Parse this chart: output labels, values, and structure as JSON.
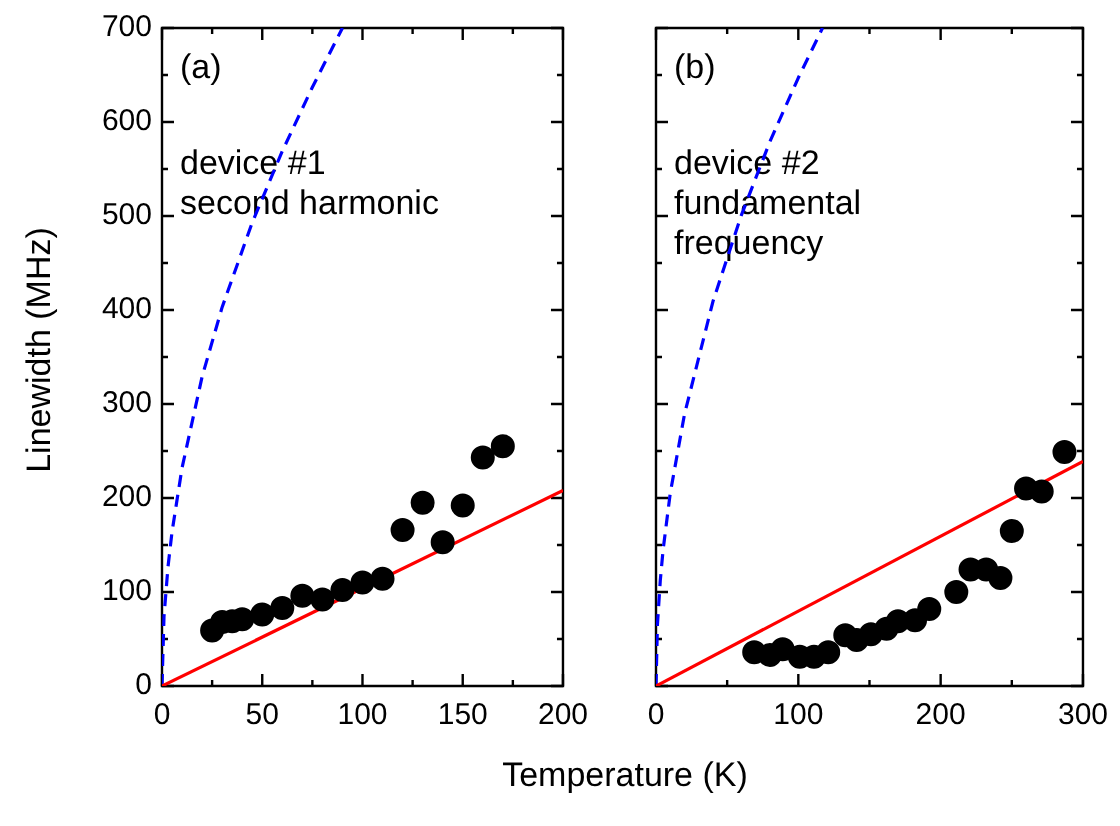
{
  "chart_data": [
    {
      "type": "scatter",
      "ylabel": "Linewidth (MHz)",
      "xlabel": "Temperature (K)",
      "annotations": [
        "(a)",
        "device #1",
        "second harmonic"
      ],
      "xlim": [
        0,
        200
      ],
      "xticks": [
        0,
        50,
        100,
        150,
        200
      ],
      "ylim": [
        0,
        700
      ],
      "yticks": [
        0,
        100,
        200,
        300,
        400,
        500,
        600,
        700
      ],
      "grid": false,
      "series": [
        {
          "marker": "circle",
          "color": "#000000",
          "x": [
            25,
            30,
            35,
            40,
            50,
            60,
            70,
            80,
            90,
            100,
            110,
            120,
            130,
            140,
            150,
            160,
            170
          ],
          "values": [
            59,
            68,
            69,
            71,
            76,
            83,
            96,
            92,
            102,
            110,
            114,
            166,
            195,
            153,
            192,
            243,
            255
          ]
        },
        {
          "type": "line",
          "line_style": "solid",
          "marker": "none",
          "color": "#ff0000",
          "x": [
            0,
            200
          ],
          "values": [
            0,
            208
          ]
        },
        {
          "type": "line",
          "line_style": "dashed",
          "marker": "none",
          "color": "#0000ff",
          "x": [
            0,
            1,
            3,
            5,
            10,
            20,
            30,
            45,
            60,
            75,
            90
          ],
          "values": [
            0,
            74,
            127,
            164,
            232,
            329,
            403,
            493,
            569,
            637,
            700
          ]
        }
      ]
    },
    {
      "type": "scatter",
      "annotations": [
        "(b)",
        "device #2",
        "fundamental",
        "frequency"
      ],
      "xlim": [
        0,
        300
      ],
      "xticks": [
        0,
        100,
        200,
        300
      ],
      "ylim": [
        0,
        700
      ],
      "yticks": [
        0,
        100,
        200,
        300,
        400,
        500,
        600,
        700
      ],
      "tick_labels": "x",
      "grid": false,
      "series": [
        {
          "marker": "circle",
          "color": "#000000",
          "x": [
            69,
            80,
            89,
            101,
            111,
            121,
            133,
            141,
            151,
            162,
            170,
            182,
            192,
            211,
            221,
            232,
            242,
            250,
            260,
            271,
            287
          ],
          "values": [
            36,
            33,
            39,
            31,
            31,
            36,
            54,
            49,
            55,
            61,
            69,
            70,
            82,
            100,
            124,
            124,
            115,
            165,
            210,
            207,
            249
          ]
        },
        {
          "type": "line",
          "line_style": "solid",
          "marker": "none",
          "color": "#ff0000",
          "x": [
            0,
            300
          ],
          "values": [
            0,
            239
          ]
        },
        {
          "type": "line",
          "line_style": "dashed",
          "marker": "none",
          "color": "#0000ff",
          "x": [
            0,
            1,
            3,
            5,
            10,
            20,
            40,
            60,
            80,
            100,
            117
          ],
          "values": [
            0,
            65,
            112,
            145,
            205,
            289,
            409,
            501,
            579,
            647,
            700
          ]
        }
      ]
    }
  ]
}
